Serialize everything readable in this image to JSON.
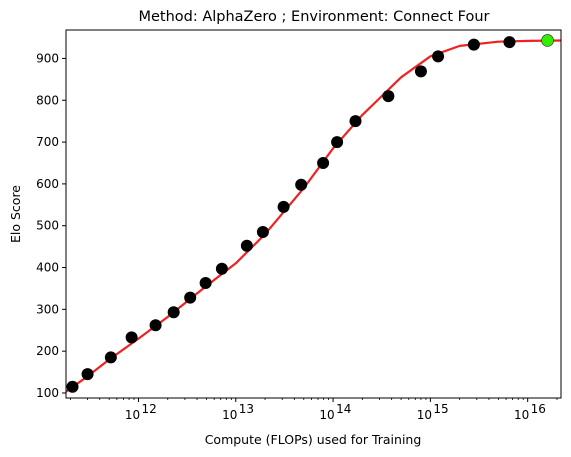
{
  "chart_data": {
    "type": "scatter",
    "title": "Method: AlphaZero ; Environment: Connect Four",
    "xlabel": "Compute (FLOPs) used for Training",
    "ylabel": "Elo Score",
    "x_scale": "log",
    "xlim": [
      180000000000.0,
      2.2e+16
    ],
    "ylim": [
      88,
      968
    ],
    "x_ticks": [
      {
        "value": 1000000000000.0,
        "base": "10",
        "exp": "12"
      },
      {
        "value": 10000000000000.0,
        "base": "10",
        "exp": "13"
      },
      {
        "value": 100000000000000.0,
        "base": "10",
        "exp": "14"
      },
      {
        "value": 1000000000000000.0,
        "base": "10",
        "exp": "15"
      },
      {
        "value": 1e+16,
        "base": "10",
        "exp": "16"
      }
    ],
    "y_ticks": [
      100,
      200,
      300,
      400,
      500,
      600,
      700,
      800,
      900
    ],
    "grid": false,
    "series": [
      {
        "kind": "points",
        "color": "#000000",
        "x": [
          210000000000.0,
          300000000000.0,
          520000000000.0,
          850000000000.0,
          1500000000000.0,
          2300000000000.0,
          3400000000000.0,
          4900000000000.0,
          7200000000000.0,
          13000000000000.0,
          19000000000000.0,
          31000000000000.0,
          47000000000000.0,
          79000000000000.0,
          110000000000000.0,
          170000000000000.0,
          370000000000000.0,
          800000000000000.0,
          1200000000000000.0,
          2800000000000000.0,
          6500000000000000.0
        ],
        "y": [
          115,
          145,
          185,
          233,
          262,
          293,
          328,
          363,
          397,
          452,
          485,
          545,
          598,
          650,
          700,
          750,
          810,
          869,
          905,
          933,
          939
        ]
      },
      {
        "kind": "highlight-point",
        "color": "#33ee00",
        "x": [
          1.6e+16
        ],
        "y": [
          943
        ]
      },
      {
        "kind": "fit-curve",
        "color": "#ee2222",
        "x": [
          180000000000.0,
          300000000000.0,
          500000000000.0,
          1000000000000.0,
          2000000000000.0,
          5000000000000.0,
          10000000000000.0,
          20000000000000.0,
          50000000000000.0,
          100000000000000.0,
          200000000000000.0,
          500000000000000.0,
          1000000000000000.0,
          2000000000000000.0,
          5000000000000000.0,
          1e+16,
          2.2e+16
        ],
        "y": [
          103,
          140,
          180,
          230,
          282,
          356,
          410,
          480,
          590,
          685,
          765,
          855,
          905,
          930,
          940,
          942,
          943
        ]
      }
    ]
  }
}
